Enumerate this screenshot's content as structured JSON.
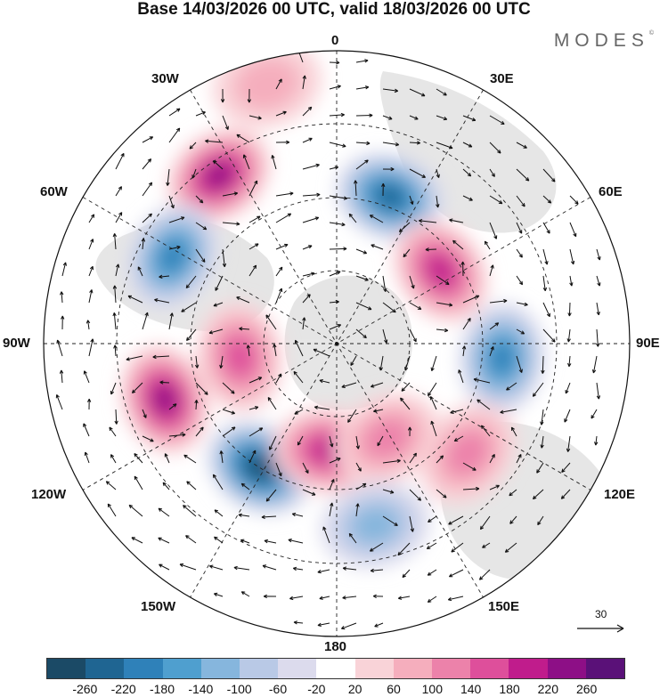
{
  "title": "Base 14/03/2026 00 UTC, valid 18/03/2026 00 UTC",
  "brand": "MODES",
  "brand_mark": "©",
  "longitude_labels": {
    "top": "0",
    "bottom": "180",
    "left": "90W",
    "right": "90E",
    "nw1": "30W",
    "nw2": "60W",
    "ne1": "30E",
    "ne2": "60E",
    "sw1": "120W",
    "sw2": "150W",
    "se1": "120E",
    "se2": "150E"
  },
  "reference_vector": "30",
  "colorbar": {
    "labels": [
      "-260",
      "-220",
      "-180",
      "-140",
      "-100",
      "-60",
      "-20",
      "20",
      "60",
      "100",
      "140",
      "180",
      "220",
      "260"
    ],
    "colors": [
      "#1b4a66",
      "#1f6592",
      "#2f81b9",
      "#4f9fcf",
      "#86b6dd",
      "#b9c9e6",
      "#dcdbed",
      "#ffffff",
      "#f9d3d8",
      "#f5aebd",
      "#ec82aa",
      "#de4f9b",
      "#c01c8c",
      "#8d0f86",
      "#5a1178"
    ]
  },
  "anomaly_cells": [
    {
      "name": "high-60w",
      "lon": -35,
      "colat": 42,
      "level": 6
    },
    {
      "name": "low-south-america",
      "lon": -62,
      "colat": 38,
      "level": -5
    },
    {
      "name": "high-100w",
      "lon": -108,
      "colat": 37,
      "level": 6
    },
    {
      "name": "high-90w-inner",
      "lon": -98,
      "colat": 20,
      "level": 4
    },
    {
      "name": "low-140w",
      "lon": -148,
      "colat": 30,
      "level": -7
    },
    {
      "name": "high-170w",
      "lon": -175,
      "colat": 22,
      "level": 5
    },
    {
      "name": "low-15e",
      "lon": 20,
      "colat": 32,
      "level": -6
    },
    {
      "name": "high-60e",
      "lon": 55,
      "colat": 26,
      "level": 5
    },
    {
      "name": "low-100e",
      "lon": 95,
      "colat": 34,
      "level": -5
    },
    {
      "name": "high-125e",
      "lon": 130,
      "colat": 35,
      "level": 3
    },
    {
      "name": "high-150e",
      "lon": 152,
      "colat": 22,
      "level": 3
    },
    {
      "name": "low-170e",
      "lon": 168,
      "colat": 38,
      "level": -3
    },
    {
      "name": "high-20w-north",
      "lon": -15,
      "colat": 55,
      "level": 2
    }
  ]
}
